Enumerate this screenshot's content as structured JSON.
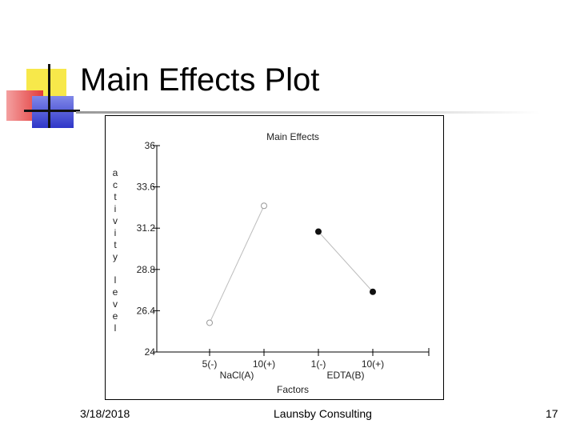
{
  "slide": {
    "title": "Main Effects Plot",
    "footer_date": "3/18/2018",
    "footer_org": "Launsby Consulting",
    "footer_page": "17"
  },
  "chart_data": {
    "type": "line",
    "title": "Main Effects",
    "xlabel": "Factors",
    "ylabel": "activity level",
    "ylim": [
      24,
      36
    ],
    "yticks": [
      24,
      26.4,
      28.8,
      31.2,
      33.6,
      36
    ],
    "ytick_labels": [
      "24",
      "26.4",
      "28.8",
      "31.2",
      "33.6",
      "36"
    ],
    "grid": false,
    "factors": [
      {
        "name": "NaCl(A)",
        "levels": [
          "5(-)",
          "10(+)"
        ],
        "values": [
          25.7,
          32.5
        ],
        "marker": "open-circle",
        "line_color": "#bdbdbd",
        "marker_color": "#999999"
      },
      {
        "name": "EDTA(B)",
        "levels": [
          "1(-)",
          "10(+)"
        ],
        "values": [
          31.0,
          27.5
        ],
        "marker": "filled-circle",
        "line_color": "#bdbdbd",
        "marker_color": "#111111"
      }
    ]
  }
}
